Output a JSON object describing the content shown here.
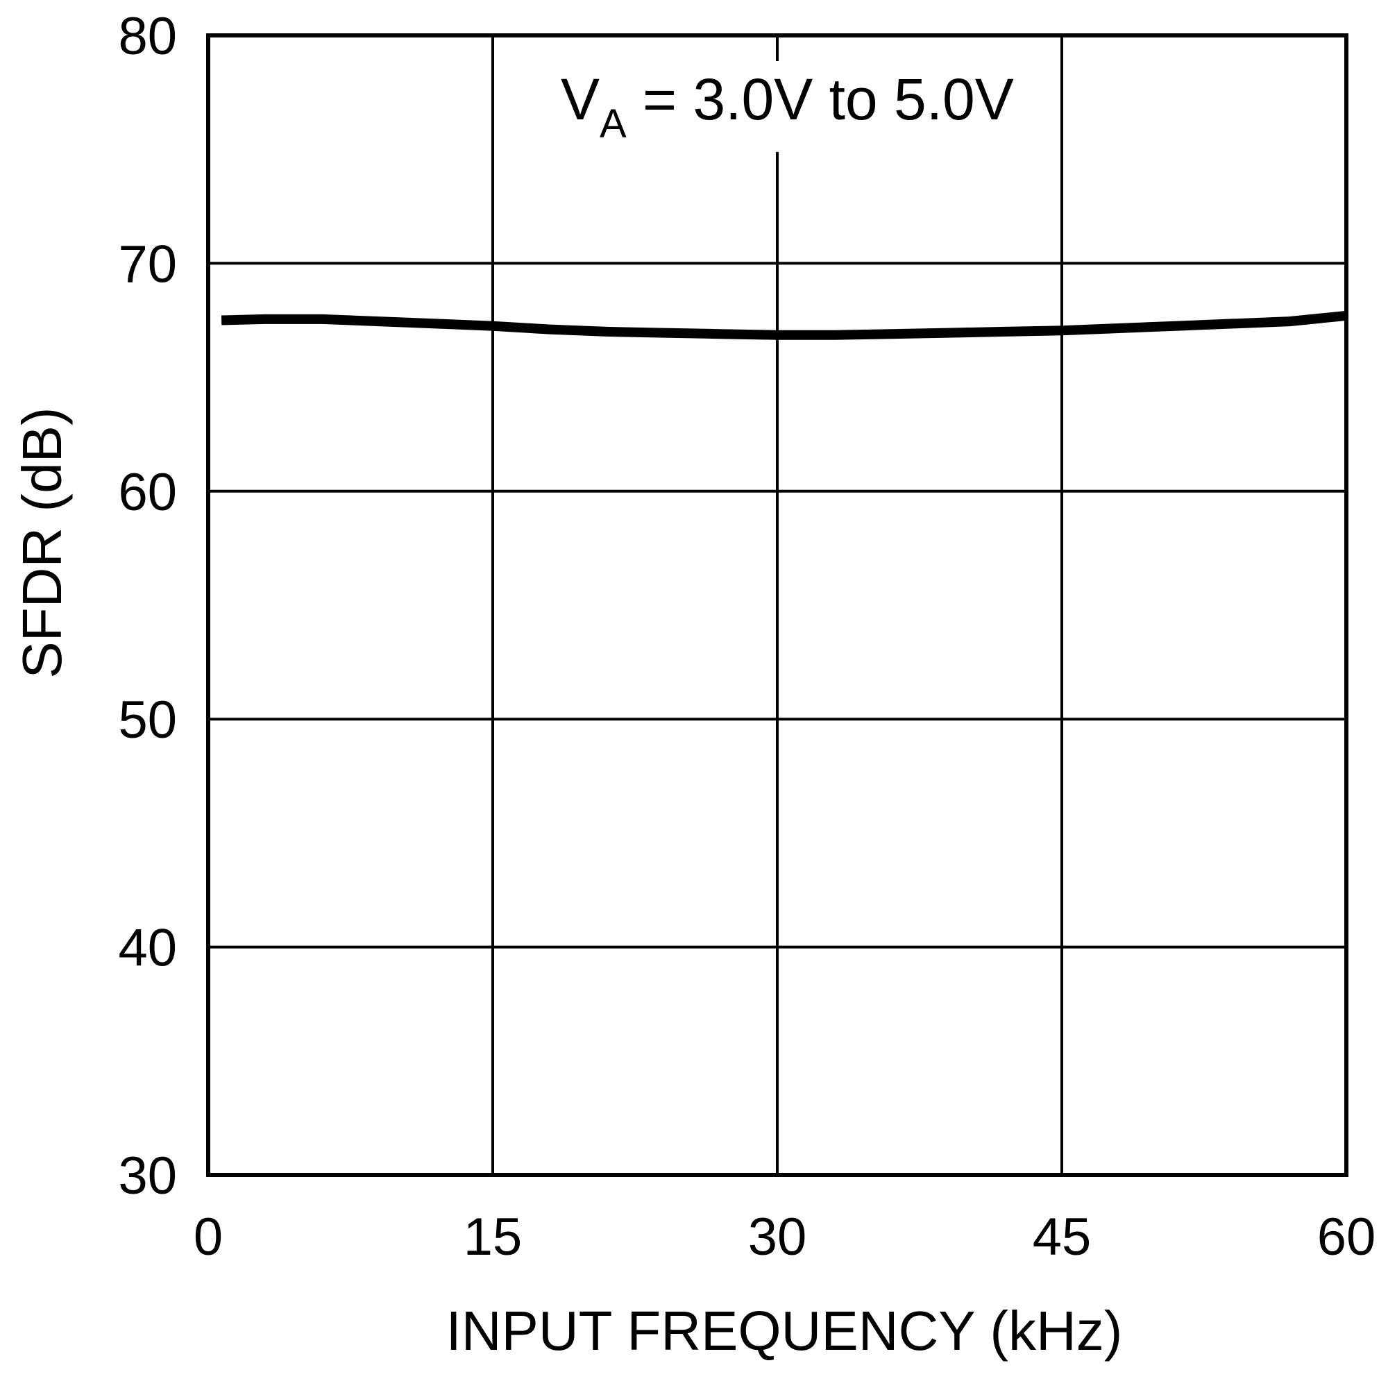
{
  "chart_data": {
    "type": "line",
    "xlabel": "INPUT FREQUENCY (kHz)",
    "ylabel": "SFDR (dB)",
    "xlim": [
      0,
      60
    ],
    "ylim": [
      30,
      80
    ],
    "xticks": [
      0,
      15,
      30,
      45,
      60
    ],
    "yticks": [
      30,
      40,
      50,
      60,
      70,
      80
    ],
    "grid": true,
    "annotation": {
      "main": "V",
      "subscript": "A",
      "rest": " = 3.0V to 5.0V"
    },
    "series": [
      {
        "x": [
          0.7,
          3,
          6,
          9,
          12,
          15,
          18,
          21,
          24,
          27,
          30,
          33,
          36,
          39,
          42,
          45,
          48,
          51,
          54,
          57,
          60
        ],
        "y": [
          67.5,
          67.55,
          67.55,
          67.45,
          67.35,
          67.25,
          67.1,
          67.0,
          66.95,
          66.9,
          66.85,
          66.85,
          66.9,
          66.95,
          67.0,
          67.05,
          67.15,
          67.25,
          67.35,
          67.45,
          67.7
        ]
      }
    ]
  }
}
